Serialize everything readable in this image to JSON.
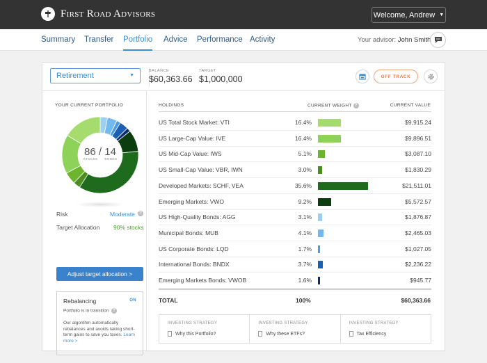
{
  "brand": {
    "name": "First Road Advisors"
  },
  "user": {
    "welcome": "Welcome, Andrew"
  },
  "nav": {
    "tabs": [
      {
        "label": "Summary"
      },
      {
        "label": "Transfer"
      },
      {
        "label": "Portfolio",
        "active": true
      },
      {
        "label": "Advice"
      },
      {
        "label": "Performance"
      },
      {
        "label": "Activity"
      }
    ],
    "advisor_label": "Your advisor:",
    "advisor_name": "John Smith"
  },
  "header": {
    "account": "Retirement",
    "balance_label": "BALANCE",
    "balance": "$60,363.66",
    "target_label": "TARGET",
    "target": "$1,000,000",
    "status": "OFF TRACK"
  },
  "portfolio": {
    "title": "YOUR CURRENT PORTFOLIO",
    "stocks": "86",
    "separator": "/",
    "bonds": "14",
    "stocks_label": "STOCKS",
    "bonds_label": "BONDS",
    "risk_label": "Risk",
    "risk_value": "Moderate",
    "target_alloc_label": "Target Allocation",
    "target_alloc_value": "90% stocks",
    "adjust_button": "Adjust target allocation >"
  },
  "rebalancing": {
    "title": "Rebalancing",
    "status": "ON",
    "subtitle": "Portfolio is in transition",
    "description": "Our algorithm automatically rebalances and avoids taking short-term gains to save you taxes.",
    "link": "Learn more >"
  },
  "holdings": {
    "col_holdings": "HOLDINGS",
    "col_weight": "CURRENT WEIGHT",
    "col_value": "CURRENT VALUE",
    "rows": [
      {
        "name": "US Total Stock Market: VTI",
        "weight": "16.4%",
        "weight_value": 16.4,
        "value": "$9,915.24",
        "color": "#a6dc6e"
      },
      {
        "name": "US Large-Cap Value: IVE",
        "weight": "16.4%",
        "weight_value": 16.4,
        "value": "$9,896.51",
        "color": "#8fd25a"
      },
      {
        "name": "US Mid-Cap Value: IWS",
        "weight": "5.1%",
        "weight_value": 5.1,
        "value": "$3,087.10",
        "color": "#6db52e"
      },
      {
        "name": "US Small-Cap Value: VBR, IWN",
        "weight": "3.0%",
        "weight_value": 3.0,
        "value": "$1,830.29",
        "color": "#4d8e22"
      },
      {
        "name": "Developed Markets: SCHF, VEA",
        "weight": "35.6%",
        "weight_value": 35.6,
        "value": "$21,511.01",
        "color": "#1e6b1e"
      },
      {
        "name": "Emerging Markets: VWO",
        "weight": "9.2%",
        "weight_value": 9.2,
        "value": "$5,572.57",
        "color": "#0c3d0f"
      },
      {
        "name": "US High-Quality Bonds: AGG",
        "weight": "3.1%",
        "weight_value": 3.1,
        "value": "$1,876.87",
        "color": "#9ccff2"
      },
      {
        "name": "Municipal Bonds: MUB",
        "weight": "4.1%",
        "weight_value": 4.1,
        "value": "$2,465.03",
        "color": "#73b9ee"
      },
      {
        "name": "US Corporate Bonds: LQD",
        "weight": "1.7%",
        "weight_value": 1.7,
        "value": "$1,027.05",
        "color": "#4a9ce6"
      },
      {
        "name": "International Bonds: BNDX",
        "weight": "3.7%",
        "weight_value": 3.7,
        "value": "$2,236.22",
        "color": "#1c5fb5"
      },
      {
        "name": "Emerging Markets Bonds: VWOB",
        "weight": "1.6%",
        "weight_value": 1.6,
        "value": "$945.77",
        "color": "#0d2d6b"
      }
    ],
    "total_label": "TOTAL",
    "total_weight": "100%",
    "total_value": "$60,363.66"
  },
  "strategies": [
    {
      "label": "INVESTING STRATEGY",
      "link": "Why this Portfolio?"
    },
    {
      "label": "INVESTING STRATEGY",
      "link": "Why these ETFs?"
    },
    {
      "label": "INVESTING STRATEGY",
      "link": "Tax Efficiency"
    }
  ],
  "colors": {
    "accent": "#3a8fd4",
    "status_warning": "#ec7a44",
    "topbar": "#333333",
    "positive": "#4aa02c"
  }
}
